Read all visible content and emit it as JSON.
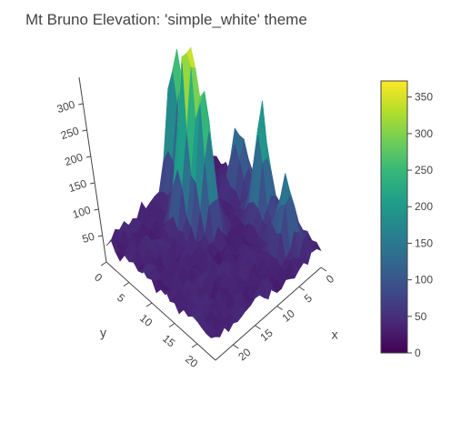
{
  "chart_data": {
    "type": "surface",
    "title": "Mt Bruno Elevation: 'simple_white' theme",
    "x_axis": {
      "label": "x",
      "ticks": [
        "0",
        "5",
        "10",
        "15",
        "20"
      ]
    },
    "y_axis": {
      "label": "y",
      "ticks": [
        "0",
        "5",
        "10",
        "15",
        "20"
      ]
    },
    "z_axis": {
      "label": "",
      "ticks": [
        "50",
        "100",
        "150",
        "200",
        "250",
        "300"
      ]
    },
    "colorscale": "Viridis",
    "colors": [
      "#440154",
      "#482878",
      "#3e4989",
      "#31688e",
      "#26828e",
      "#1f9e89",
      "#35b779",
      "#6ece58",
      "#b5de2b",
      "#fde725"
    ],
    "zmin": 0,
    "zmax": 372,
    "colorbar": {
      "ticks": [
        0,
        50,
        100,
        150,
        200,
        250,
        300,
        350
      ]
    },
    "z_peaks": [
      {
        "x": 12,
        "y": 6,
        "z": 350
      },
      {
        "x": 11,
        "y": 9,
        "z": 250
      },
      {
        "x": 9,
        "y": 1,
        "z": 280
      },
      {
        "x": 3,
        "y": 14,
        "z": 200
      },
      {
        "x": 4,
        "y": 20,
        "z": 160
      },
      {
        "x": 2,
        "y": 8,
        "z": 120
      }
    ],
    "z_base": 25
  }
}
